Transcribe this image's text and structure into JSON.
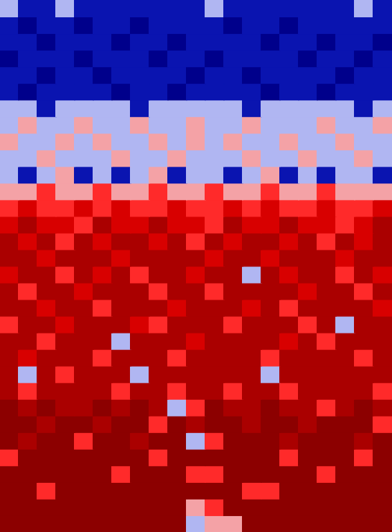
{
  "chart_data": {
    "type": "heatmap",
    "tick_labels": false,
    "colors": [
      "#00008b",
      "#0a14b0",
      "#b0b6f2",
      "#f4a2a6",
      "#ff2a2a",
      "#d80000",
      "#aa0000",
      "#8c0000"
    ],
    "cells": [
      [
        2,
        1,
        1,
        2,
        1,
        1,
        1,
        1,
        1,
        1,
        1,
        2,
        1,
        1,
        1,
        1,
        1,
        1,
        1,
        2,
        1
      ],
      [
        1,
        0,
        1,
        1,
        0,
        1,
        1,
        0,
        1,
        1,
        1,
        1,
        0,
        1,
        1,
        0,
        1,
        1,
        1,
        1,
        1
      ],
      [
        1,
        1,
        0,
        1,
        1,
        1,
        0,
        1,
        1,
        0,
        1,
        1,
        1,
        1,
        0,
        1,
        1,
        0,
        1,
        1,
        0
      ],
      [
        0,
        1,
        1,
        1,
        0,
        1,
        1,
        1,
        0,
        1,
        1,
        0,
        1,
        1,
        1,
        1,
        0,
        1,
        1,
        0,
        1
      ],
      [
        1,
        1,
        0,
        1,
        1,
        0,
        1,
        1,
        1,
        1,
        0,
        1,
        1,
        0,
        1,
        1,
        1,
        1,
        0,
        1,
        1
      ],
      [
        1,
        0,
        1,
        1,
        1,
        1,
        0,
        1,
        1,
        0,
        1,
        1,
        1,
        1,
        0,
        1,
        1,
        0,
        1,
        1,
        1
      ],
      [
        2,
        2,
        1,
        2,
        2,
        2,
        2,
        1,
        2,
        2,
        2,
        2,
        2,
        1,
        2,
        2,
        2,
        2,
        2,
        1,
        2
      ],
      [
        2,
        3,
        2,
        2,
        3,
        2,
        2,
        3,
        2,
        2,
        3,
        2,
        2,
        3,
        2,
        2,
        2,
        3,
        2,
        2,
        3
      ],
      [
        3,
        2,
        2,
        3,
        2,
        3,
        2,
        2,
        3,
        2,
        3,
        2,
        3,
        2,
        2,
        3,
        2,
        2,
        3,
        2,
        2
      ],
      [
        2,
        2,
        3,
        2,
        2,
        2,
        3,
        2,
        2,
        3,
        2,
        2,
        2,
        3,
        2,
        2,
        3,
        2,
        2,
        3,
        2
      ],
      [
        2,
        1,
        2,
        3,
        1,
        2,
        1,
        2,
        3,
        1,
        2,
        2,
        1,
        2,
        3,
        1,
        2,
        1,
        2,
        2,
        1
      ],
      [
        3,
        3,
        4,
        3,
        3,
        4,
        3,
        3,
        4,
        3,
        3,
        4,
        3,
        3,
        4,
        3,
        3,
        4,
        3,
        3,
        3
      ],
      [
        4,
        5,
        4,
        4,
        5,
        4,
        5,
        4,
        4,
        5,
        4,
        4,
        5,
        4,
        5,
        4,
        4,
        5,
        4,
        4,
        5
      ],
      [
        5,
        6,
        5,
        5,
        4,
        6,
        5,
        5,
        6,
        5,
        5,
        4,
        6,
        5,
        5,
        6,
        5,
        5,
        4,
        5,
        6
      ],
      [
        6,
        5,
        6,
        4,
        6,
        5,
        6,
        6,
        5,
        6,
        4,
        6,
        5,
        6,
        6,
        5,
        6,
        4,
        6,
        5,
        6
      ],
      [
        6,
        6,
        5,
        6,
        6,
        6,
        5,
        6,
        6,
        6,
        6,
        5,
        6,
        6,
        5,
        6,
        6,
        6,
        5,
        6,
        6
      ],
      [
        5,
        6,
        6,
        4,
        6,
        5,
        6,
        4,
        6,
        6,
        5,
        6,
        6,
        2,
        6,
        5,
        6,
        6,
        4,
        6,
        5
      ],
      [
        6,
        4,
        6,
        6,
        5,
        6,
        6,
        6,
        4,
        6,
        6,
        4,
        6,
        6,
        6,
        6,
        5,
        6,
        6,
        4,
        6
      ],
      [
        6,
        6,
        5,
        6,
        6,
        4,
        6,
        6,
        6,
        5,
        6,
        6,
        6,
        5,
        6,
        4,
        6,
        6,
        6,
        6,
        5
      ],
      [
        4,
        6,
        6,
        5,
        6,
        6,
        6,
        5,
        4,
        6,
        6,
        6,
        4,
        6,
        6,
        6,
        4,
        6,
        2,
        6,
        6
      ],
      [
        6,
        6,
        4,
        6,
        6,
        6,
        2,
        6,
        6,
        6,
        5,
        6,
        6,
        6,
        6,
        5,
        6,
        4,
        6,
        6,
        6
      ],
      [
        6,
        5,
        6,
        6,
        6,
        4,
        6,
        6,
        6,
        4,
        6,
        6,
        6,
        6,
        4,
        6,
        6,
        6,
        6,
        4,
        6
      ],
      [
        6,
        2,
        6,
        4,
        6,
        6,
        6,
        2,
        6,
        6,
        6,
        6,
        6,
        6,
        2,
        6,
        6,
        6,
        6,
        6,
        6
      ],
      [
        6,
        4,
        6,
        6,
        6,
        6,
        4,
        6,
        6,
        4,
        6,
        6,
        4,
        6,
        6,
        4,
        6,
        6,
        6,
        6,
        4
      ],
      [
        7,
        6,
        7,
        6,
        6,
        7,
        6,
        7,
        6,
        2,
        4,
        7,
        6,
        6,
        7,
        6,
        6,
        4,
        6,
        7,
        6
      ],
      [
        7,
        7,
        6,
        7,
        7,
        6,
        7,
        7,
        4,
        7,
        6,
        7,
        7,
        6,
        7,
        7,
        6,
        7,
        7,
        7,
        4
      ],
      [
        7,
        6,
        7,
        7,
        4,
        7,
        7,
        6,
        7,
        7,
        2,
        4,
        7,
        7,
        7,
        6,
        7,
        7,
        7,
        6,
        7
      ],
      [
        4,
        7,
        7,
        7,
        7,
        7,
        7,
        7,
        4,
        7,
        7,
        7,
        7,
        7,
        7,
        4,
        7,
        7,
        7,
        4,
        7
      ],
      [
        7,
        7,
        7,
        7,
        7,
        7,
        4,
        7,
        7,
        7,
        4,
        4,
        7,
        7,
        7,
        7,
        7,
        4,
        7,
        7,
        7
      ],
      [
        7,
        7,
        4,
        7,
        7,
        7,
        7,
        7,
        7,
        7,
        7,
        7,
        7,
        4,
        4,
        7,
        7,
        7,
        7,
        7,
        7
      ],
      [
        7,
        7,
        7,
        7,
        7,
        7,
        7,
        7,
        7,
        7,
        3,
        4,
        7,
        7,
        7,
        7,
        7,
        7,
        7,
        7,
        7
      ],
      [
        7,
        7,
        7,
        7,
        7,
        7,
        7,
        7,
        7,
        7,
        2,
        3,
        3,
        7,
        7,
        7,
        7,
        7,
        7,
        7,
        7
      ]
    ]
  }
}
